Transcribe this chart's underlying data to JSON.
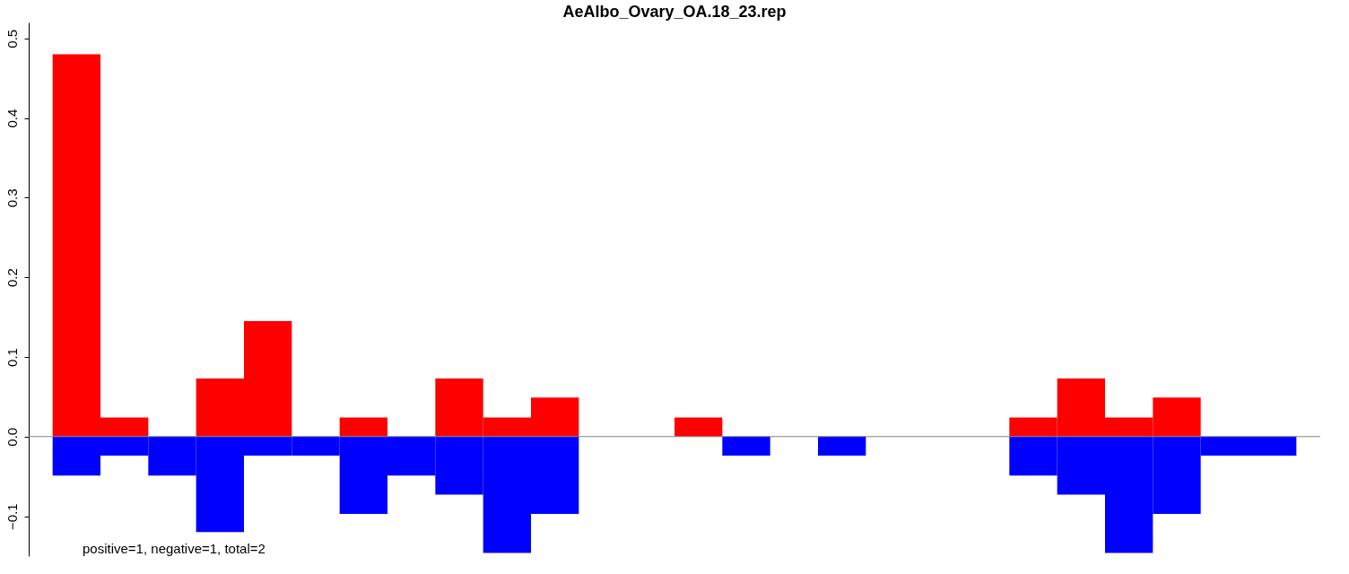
{
  "chart_data": {
    "type": "bar",
    "title": "AeAlbo_Ovary_OA.18_23.rep",
    "categories": [
      null,
      null,
      null,
      null,
      null,
      null,
      null,
      null,
      null,
      null,
      null,
      null,
      null,
      null,
      null,
      null,
      null,
      null,
      null,
      null,
      null,
      null,
      null,
      null,
      null,
      null
    ],
    "series": [
      {
        "color": "#ff0000",
        "values": [
          0.48,
          0.024,
          0,
          0.073,
          0.145,
          0,
          0.024,
          0,
          0.073,
          0.024,
          0.049,
          0,
          0,
          0.024,
          0,
          0,
          0,
          0,
          0,
          0,
          0.024,
          0.073,
          0.024,
          0.049,
          0,
          0
        ]
      },
      {
        "color": "#0000ff",
        "values": [
          -0.049,
          -0.024,
          -0.049,
          -0.12,
          -0.024,
          -0.024,
          -0.097,
          -0.049,
          -0.073,
          -0.146,
          -0.097,
          0,
          0,
          0,
          -0.024,
          0,
          -0.024,
          0,
          0,
          0,
          -0.049,
          -0.073,
          -0.146,
          -0.097,
          -0.024,
          -0.024
        ]
      }
    ],
    "ylim": [
      -0.15,
      0.52
    ],
    "yticks": [
      {
        "value": -0.1,
        "label": "−0.1"
      },
      {
        "value": 0.0,
        "label": "0.0"
      },
      {
        "value": 0.1,
        "label": "0.1"
      },
      {
        "value": 0.2,
        "label": "0.2"
      },
      {
        "value": 0.3,
        "label": "0.3"
      },
      {
        "value": 0.4,
        "label": "0.4"
      },
      {
        "value": 0.5,
        "label": "0.5"
      }
    ],
    "tick_labels": "y",
    "grid": false,
    "ref_lines": [
      {
        "axis": "y",
        "value": 0,
        "color": "#808080"
      }
    ],
    "annotations": [
      "positive=1, negative=1, total=2"
    ]
  }
}
